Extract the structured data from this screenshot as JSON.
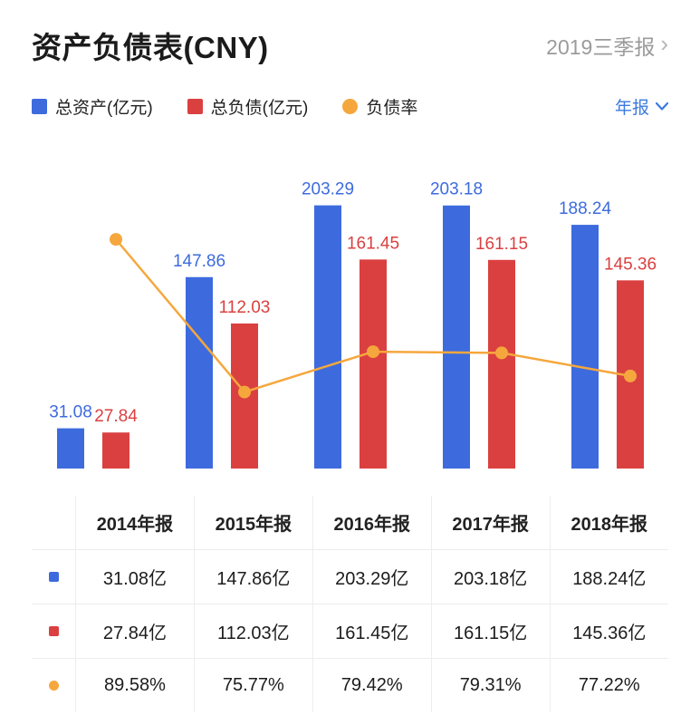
{
  "header": {
    "title": "资产负债表(CNY)",
    "period_label": "2019三季报",
    "period_chevron": "›"
  },
  "legend": [
    {
      "key": "total-assets",
      "label": "总资产(亿元)",
      "color": "#3D6BDE",
      "shape": "square"
    },
    {
      "key": "total-liabilities",
      "label": "总负债(亿元)",
      "color": "#DB4040",
      "shape": "square"
    },
    {
      "key": "debt-ratio",
      "label": "负债率",
      "color": "#F5A73D",
      "shape": "circle"
    }
  ],
  "dropdown": {
    "label": "年报"
  },
  "chart_data": {
    "type": "bar+line",
    "categories": [
      "2014年报",
      "2015年报",
      "2016年报",
      "2017年报",
      "2018年报"
    ],
    "series": [
      {
        "key": "total-assets",
        "name": "总资产(亿元)",
        "type": "bar",
        "color": "#3D6BDE",
        "values": [
          31.08,
          147.86,
          203.29,
          203.18,
          188.24
        ]
      },
      {
        "key": "total-liabilities",
        "name": "总负债(亿元)",
        "type": "bar",
        "color": "#DB4040",
        "values": [
          27.84,
          112.03,
          161.45,
          161.15,
          145.36
        ]
      },
      {
        "key": "debt-ratio",
        "name": "负债率",
        "type": "line",
        "color": "#F5A73D",
        "unit": "%",
        "values": [
          89.58,
          75.77,
          79.42,
          79.31,
          77.22
        ]
      }
    ],
    "value_axis": {
      "min": 0,
      "max": 210
    },
    "percent_axis": {
      "min": 70,
      "max": 95
    },
    "grid": false,
    "legend_position": "top",
    "data_labels": true
  },
  "table": {
    "columns": [
      "2014年报",
      "2015年报",
      "2016年报",
      "2017年报",
      "2018年报"
    ],
    "rows": [
      {
        "icon": "blue-square",
        "values": [
          "31.08亿",
          "147.86亿",
          "203.29亿",
          "203.18亿",
          "188.24亿"
        ]
      },
      {
        "icon": "red-square",
        "values": [
          "27.84亿",
          "112.03亿",
          "161.45亿",
          "161.15亿",
          "145.36亿"
        ]
      },
      {
        "icon": "orange-circle",
        "values": [
          "89.58%",
          "75.77%",
          "79.42%",
          "79.31%",
          "77.22%"
        ]
      }
    ]
  },
  "colors": {
    "accent_blue": "#3D6BDE",
    "red": "#DB4040",
    "orange": "#F5A73D",
    "link_blue": "#3A7BE0",
    "muted_gray": "#9B9B9B"
  }
}
